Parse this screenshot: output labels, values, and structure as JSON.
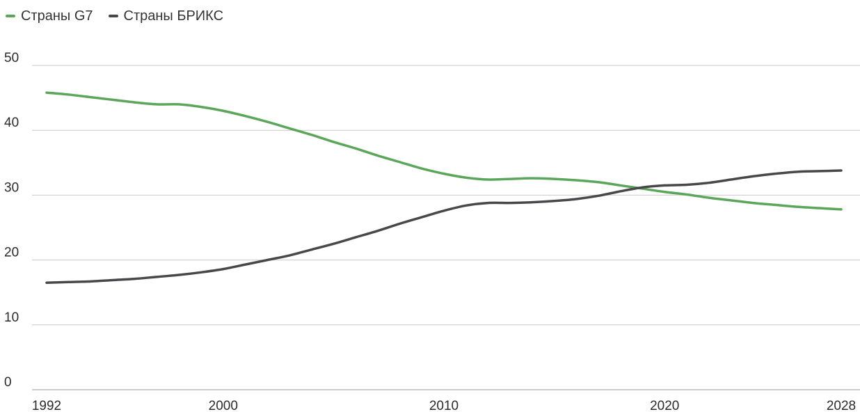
{
  "chart_data": {
    "type": "line",
    "title": "",
    "xlabel": "",
    "ylabel": "",
    "xlim": [
      1992,
      2028
    ],
    "ylim": [
      0,
      50
    ],
    "y_ticks": [
      "0",
      "10",
      "20",
      "30",
      "40",
      "50"
    ],
    "x_ticks": [
      "1992",
      "2000",
      "2010",
      "2020",
      "2028"
    ],
    "grid": true,
    "legend": "top-left",
    "series": [
      {
        "name": "Страны G7",
        "color": "#5ba65b",
        "points": [
          [
            1992,
            45.8
          ],
          [
            1993,
            45.5
          ],
          [
            1994,
            45.1
          ],
          [
            1995,
            44.7
          ],
          [
            1996,
            44.3
          ],
          [
            1997,
            44.0
          ],
          [
            1998,
            44.0
          ],
          [
            1999,
            43.6
          ],
          [
            2000,
            43.0
          ],
          [
            2001,
            42.2
          ],
          [
            2002,
            41.3
          ],
          [
            2003,
            40.3
          ],
          [
            2004,
            39.3
          ],
          [
            2005,
            38.2
          ],
          [
            2006,
            37.2
          ],
          [
            2007,
            36.1
          ],
          [
            2008,
            35.1
          ],
          [
            2009,
            34.1
          ],
          [
            2010,
            33.3
          ],
          [
            2011,
            32.7
          ],
          [
            2012,
            32.4
          ],
          [
            2013,
            32.5
          ],
          [
            2014,
            32.6
          ],
          [
            2015,
            32.5
          ],
          [
            2016,
            32.3
          ],
          [
            2017,
            32.0
          ],
          [
            2018,
            31.5
          ],
          [
            2019,
            31.0
          ],
          [
            2020,
            30.5
          ],
          [
            2021,
            30.1
          ],
          [
            2022,
            29.6
          ],
          [
            2023,
            29.2
          ],
          [
            2024,
            28.8
          ],
          [
            2025,
            28.5
          ],
          [
            2026,
            28.2
          ],
          [
            2027,
            28.0
          ],
          [
            2028,
            27.8
          ]
        ]
      },
      {
        "name": "Страны БРИКС",
        "color": "#48484b",
        "points": [
          [
            1992,
            16.5
          ],
          [
            1993,
            16.6
          ],
          [
            1994,
            16.7
          ],
          [
            1995,
            16.9
          ],
          [
            1996,
            17.1
          ],
          [
            1997,
            17.4
          ],
          [
            1998,
            17.7
          ],
          [
            1999,
            18.1
          ],
          [
            2000,
            18.6
          ],
          [
            2001,
            19.3
          ],
          [
            2002,
            20.0
          ],
          [
            2003,
            20.7
          ],
          [
            2004,
            21.6
          ],
          [
            2005,
            22.5
          ],
          [
            2006,
            23.5
          ],
          [
            2007,
            24.5
          ],
          [
            2008,
            25.6
          ],
          [
            2009,
            26.6
          ],
          [
            2010,
            27.6
          ],
          [
            2011,
            28.4
          ],
          [
            2012,
            28.8
          ],
          [
            2013,
            28.8
          ],
          [
            2014,
            28.9
          ],
          [
            2015,
            29.1
          ],
          [
            2016,
            29.4
          ],
          [
            2017,
            29.9
          ],
          [
            2018,
            30.6
          ],
          [
            2019,
            31.2
          ],
          [
            2020,
            31.5
          ],
          [
            2021,
            31.6
          ],
          [
            2022,
            31.9
          ],
          [
            2023,
            32.4
          ],
          [
            2024,
            32.9
          ],
          [
            2025,
            33.3
          ],
          [
            2026,
            33.6
          ],
          [
            2027,
            33.7
          ],
          [
            2028,
            33.8
          ]
        ]
      }
    ]
  }
}
